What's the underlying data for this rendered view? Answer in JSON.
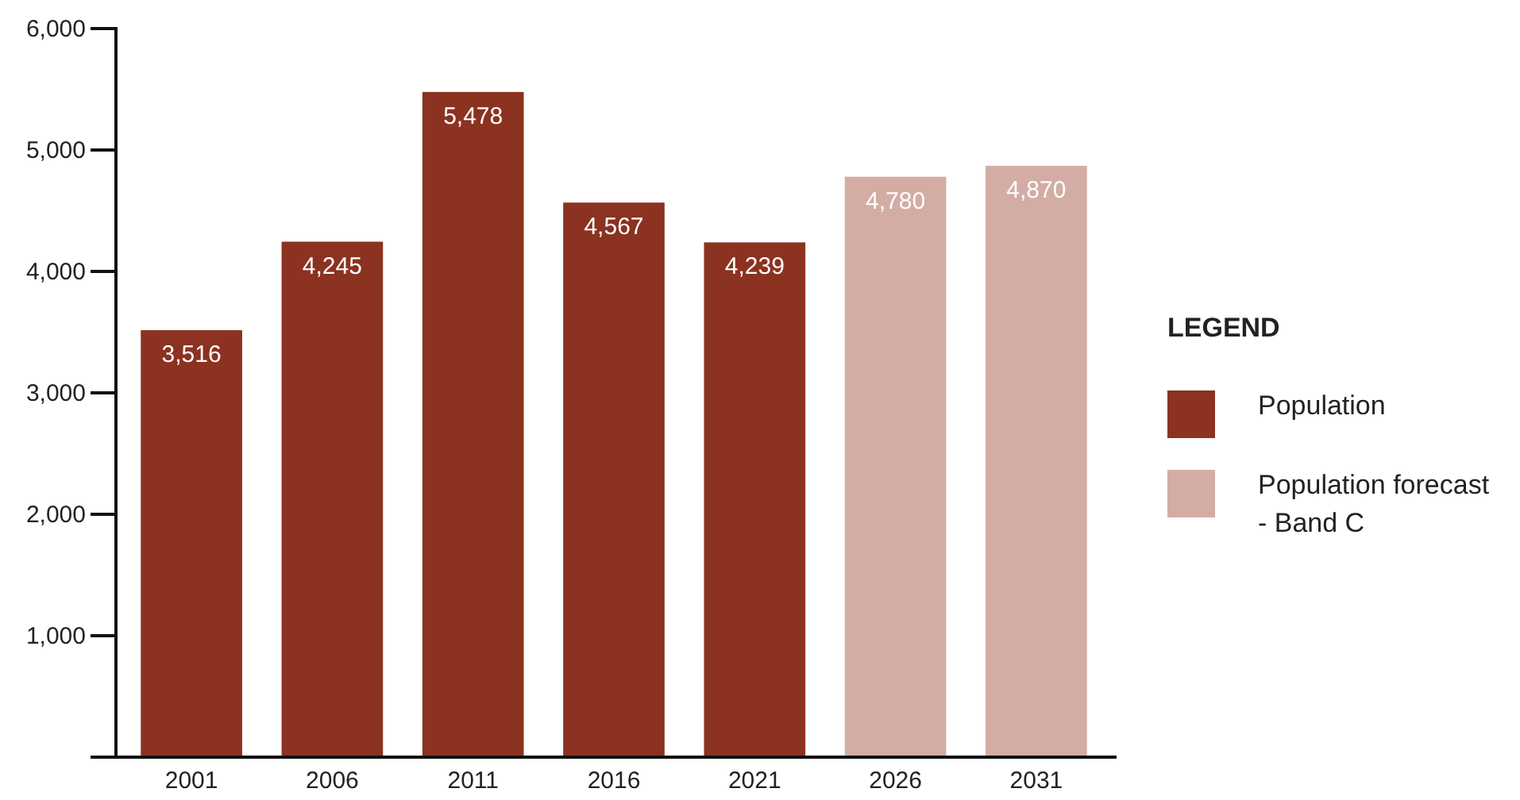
{
  "chart_data": {
    "type": "bar",
    "categories": [
      "2001",
      "2006",
      "2011",
      "2016",
      "2021",
      "2026",
      "2031"
    ],
    "series": [
      {
        "name": "Population",
        "color": "#8b3220",
        "values": [
          3516,
          4245,
          5478,
          4567,
          4239,
          null,
          null
        ],
        "value_labels": [
          "3,516",
          "4,245",
          "5,478",
          "4,567",
          "4,239",
          null,
          null
        ]
      },
      {
        "name": "Population forecast - Band C",
        "color": "#d3ada4",
        "values": [
          null,
          null,
          null,
          null,
          null,
          4780,
          4870
        ],
        "value_labels": [
          null,
          null,
          null,
          null,
          null,
          "4,780",
          "4,870"
        ]
      }
    ],
    "ylim": [
      0,
      6000
    ],
    "yticks": [
      {
        "value": 1000,
        "label": "1,000"
      },
      {
        "value": 2000,
        "label": "2,000"
      },
      {
        "value": 3000,
        "label": "3,000"
      },
      {
        "value": 4000,
        "label": "4,000"
      },
      {
        "value": 5000,
        "label": "5,000"
      },
      {
        "value": 6000,
        "label": "6,000"
      }
    ],
    "legend": "right",
    "legend_title": "LEGEND",
    "grid": false
  }
}
